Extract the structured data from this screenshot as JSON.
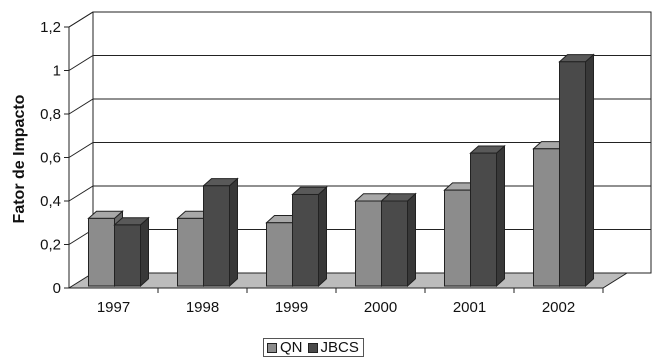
{
  "chart_data": {
    "type": "bar",
    "ylabel": "Fator de Impacto",
    "categories": [
      "1997",
      "1998",
      "1999",
      "2000",
      "2001",
      "2002"
    ],
    "ylim": [
      0,
      1.2
    ],
    "yticks": [
      "0",
      "0,2",
      "0,4",
      "0,6",
      "0,8",
      "1",
      "1,2"
    ],
    "grid": true,
    "three_d": true,
    "legend_position": "bottom",
    "series": [
      {
        "name": "QN",
        "values": [
          0.32,
          0.32,
          0.3,
          0.4,
          0.45,
          0.64
        ],
        "color": "#8c8c8c"
      },
      {
        "name": "JBCS",
        "values": [
          0.29,
          0.47,
          0.43,
          0.4,
          0.62,
          1.04
        ],
        "color": "#4a4a4a"
      }
    ]
  }
}
